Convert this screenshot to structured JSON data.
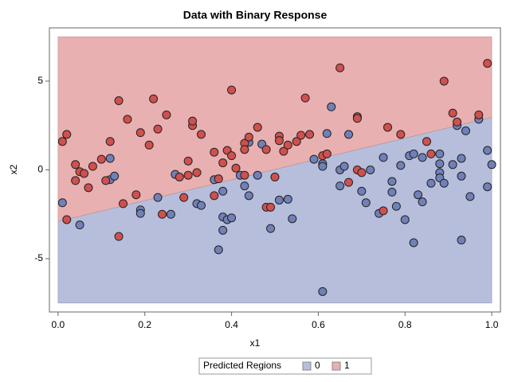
{
  "chart_data": {
    "type": "scatter",
    "title": "Data with Binary Response",
    "x_label": "x1",
    "y_label": "x2",
    "xlim": [
      -0.02,
      1.02
    ],
    "ylim": [
      -8,
      8
    ],
    "xticks": [
      {
        "value": 0,
        "label": "0.0"
      },
      {
        "value": 0.2,
        "label": "0.2"
      },
      {
        "value": 0.4,
        "label": "0.4"
      },
      {
        "value": 0.6,
        "label": "0.6"
      },
      {
        "value": 0.8,
        "label": "0.8"
      },
      {
        "value": 1,
        "label": "1.0"
      }
    ],
    "yticks": [
      -5,
      0,
      5
    ],
    "legend_title": "Predicted Regions",
    "legend_position": "bottom",
    "region_boundary": {
      "x": [
        0,
        1
      ],
      "y": [
        -2.9,
        2.96
      ]
    },
    "region_ylim": [
      -7.5,
      7.5
    ],
    "series": [
      {
        "name": "0",
        "color": "#7080b8",
        "region_color": "#b6bedb",
        "x": [
          0.01,
          0.05,
          0.12,
          0.12,
          0.13,
          0.19,
          0.19,
          0.23,
          0.26,
          0.27,
          0.32,
          0.33,
          0.36,
          0.37,
          0.38,
          0.38,
          0.38,
          0.39,
          0.4,
          0.42,
          0.43,
          0.44,
          0.44,
          0.46,
          0.47,
          0.49,
          0.51,
          0.53,
          0.54,
          0.59,
          0.61,
          0.61,
          0.61,
          0.62,
          0.63,
          0.65,
          0.65,
          0.66,
          0.67,
          0.7,
          0.71,
          0.72,
          0.74,
          0.75,
          0.77,
          0.77,
          0.78,
          0.79,
          0.8,
          0.81,
          0.82,
          0.82,
          0.83,
          0.84,
          0.84,
          0.86,
          0.88,
          0.88,
          0.88,
          0.88,
          0.89,
          0.91,
          0.92,
          0.93,
          0.93,
          0.93,
          0.94,
          0.95,
          0.97,
          0.99,
          0.99,
          1.0
        ],
        "y": [
          -1.85,
          -3.1,
          0.65,
          -0.55,
          -0.35,
          -2.25,
          -2.45,
          -1.55,
          -2.5,
          -0.25,
          -1.9,
          -2.0,
          -0.55,
          -4.5,
          -1.2,
          -2.65,
          -3.4,
          -2.8,
          -2.7,
          -0.3,
          -0.9,
          1.55,
          -1.45,
          -0.3,
          1.45,
          -3.3,
          -1.7,
          -1.65,
          -2.75,
          0.6,
          0.35,
          0.2,
          -6.85,
          2.05,
          3.55,
          0.0,
          -0.9,
          0.2,
          2.0,
          -1.2,
          -1.85,
          0.0,
          -2.45,
          0.7,
          -0.65,
          -1.25,
          -2.05,
          0.25,
          -2.8,
          0.8,
          -4.1,
          0.9,
          -1.4,
          0.7,
          -1.8,
          -0.75,
          0.9,
          0.35,
          -0.15,
          -0.45,
          -0.75,
          0.3,
          2.5,
          0.65,
          -0.35,
          -3.95,
          2.2,
          -1.5,
          2.85,
          1.1,
          -0.95,
          0.3
        ]
      },
      {
        "name": "1",
        "color": "#d0504e",
        "region_color": "#e8b0b0",
        "x": [
          0.01,
          0.02,
          0.02,
          0.04,
          0.04,
          0.05,
          0.06,
          0.07,
          0.08,
          0.1,
          0.11,
          0.12,
          0.14,
          0.14,
          0.15,
          0.16,
          0.18,
          0.19,
          0.21,
          0.22,
          0.23,
          0.24,
          0.25,
          0.28,
          0.29,
          0.3,
          0.3,
          0.31,
          0.31,
          0.32,
          0.33,
          0.36,
          0.36,
          0.37,
          0.38,
          0.39,
          0.4,
          0.4,
          0.41,
          0.43,
          0.43,
          0.43,
          0.44,
          0.46,
          0.48,
          0.48,
          0.49,
          0.5,
          0.51,
          0.51,
          0.52,
          0.53,
          0.55,
          0.56,
          0.57,
          0.58,
          0.61,
          0.62,
          0.65,
          0.67,
          0.69,
          0.69,
          0.69,
          0.7,
          0.75,
          0.76,
          0.79,
          0.85,
          0.86,
          0.89,
          0.91,
          0.92,
          0.97,
          0.99
        ],
        "y": [
          1.6,
          2.0,
          -2.8,
          0.3,
          -0.6,
          -0.1,
          -0.2,
          -1.0,
          0.2,
          0.6,
          -0.6,
          1.6,
          3.9,
          -3.75,
          -1.9,
          2.85,
          -1.4,
          2.1,
          1.4,
          4.0,
          2.3,
          -2.5,
          3.1,
          -0.4,
          -1.55,
          0.5,
          -0.3,
          2.5,
          2.75,
          -0.15,
          2.0,
          1.0,
          -1.45,
          -0.5,
          0.4,
          1.1,
          4.5,
          0.8,
          0.1,
          1.5,
          1.15,
          -0.3,
          1.85,
          2.4,
          1.15,
          -2.1,
          -2.1,
          -0.4,
          1.9,
          1.65,
          1.05,
          1.4,
          1.6,
          1.95,
          4.05,
          2.0,
          0.8,
          0.9,
          5.75,
          -0.7,
          3.0,
          2.9,
          0.0,
          -0.15,
          -2.3,
          2.4,
          2.0,
          1.6,
          0.9,
          5.0,
          3.2,
          2.7,
          3.1,
          6.0
        ]
      }
    ]
  }
}
